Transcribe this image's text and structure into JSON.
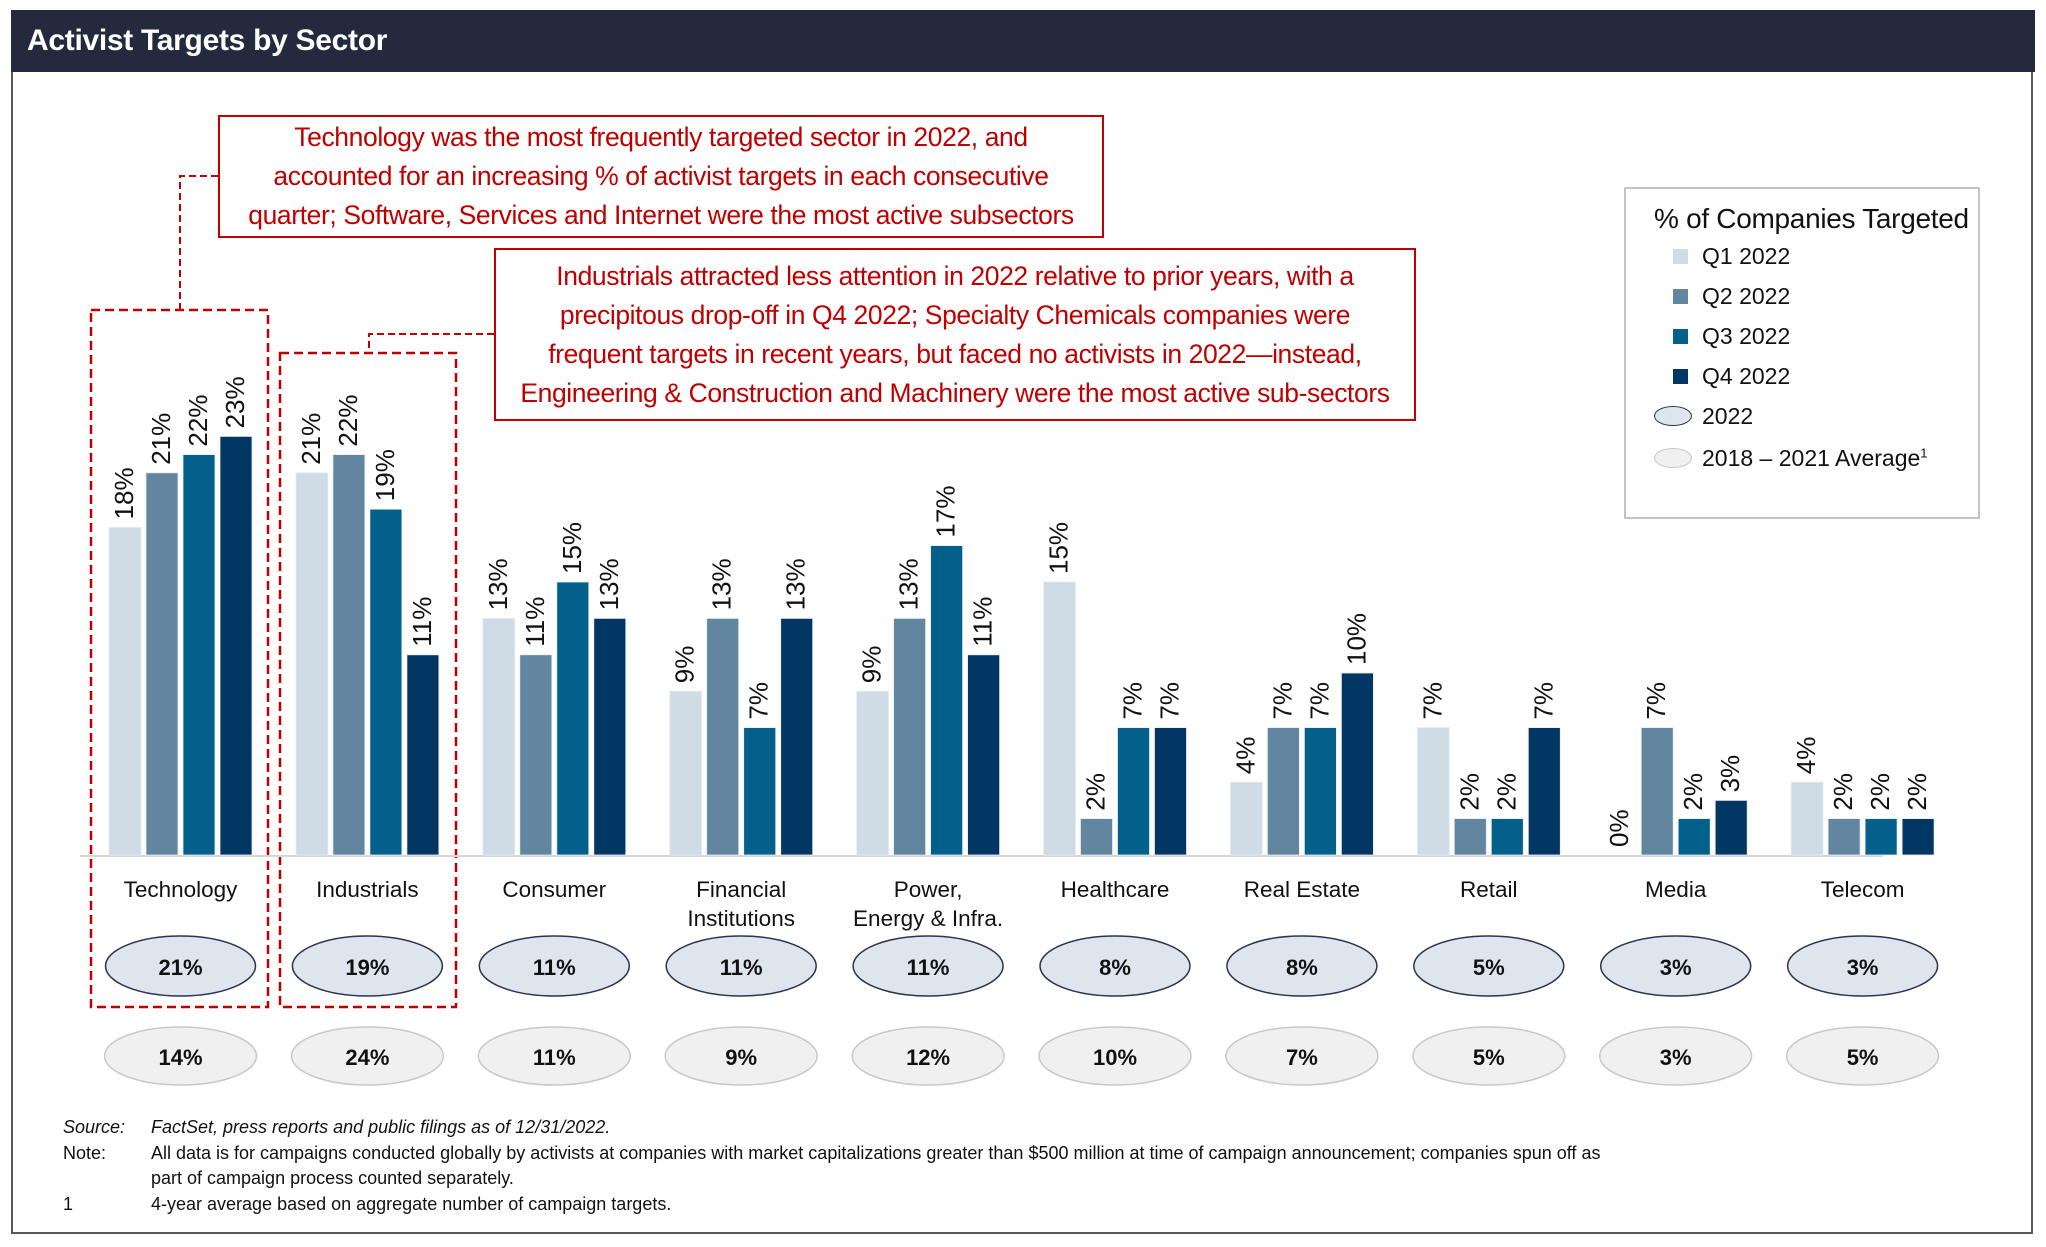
{
  "header": {
    "title": "Activist Targets by Sector"
  },
  "callouts": [
    {
      "id": "technology",
      "lines": [
        "Technology was the most frequently targeted sector in 2022, and",
        "accounted for an increasing % of activist targets in each consecutive",
        "quarter; Software, Services and Internet were the most active subsectors"
      ]
    },
    {
      "id": "industrials",
      "lines": [
        "Industrials attracted less attention in 2022 relative to prior years, with a",
        "precipitous drop-off in Q4 2022; Specialty Chemicals companies were",
        "frequent targets in recent years, but faced no activists in 2022—instead,",
        "Engineering & Construction and Machinery were the most active sub-sectors"
      ]
    }
  ],
  "legend": {
    "title": "% of Companies Targeted",
    "items": [
      {
        "label": "Q1 2022",
        "shape": "square",
        "color": "#cfdce6"
      },
      {
        "label": "Q2 2022",
        "shape": "square",
        "color": "#62869f"
      },
      {
        "label": "Q3 2022",
        "shape": "square",
        "color": "#03608b"
      },
      {
        "label": "Q4 2022",
        "shape": "square",
        "color": "#023764"
      },
      {
        "label": "2022",
        "shape": "ellipse",
        "color": "#dfe5ec",
        "border": "#2b3450"
      },
      {
        "label": "2018 – 2021 Average",
        "superscript": "1",
        "shape": "ellipse",
        "color": "#f0f0f0",
        "border": "#c8c8c8"
      }
    ]
  },
  "chart_data": {
    "type": "bar",
    "title": "Activist Targets by Sector",
    "ylabel": "% of Companies Targeted",
    "xlabel": "",
    "ylim": [
      0,
      25
    ],
    "grid": false,
    "legend_position": "right",
    "value_format": "percent",
    "categories": [
      "Technology",
      "Industrials",
      "Consumer",
      "Financial\nInstitutions",
      "Power,\nEnergy & Infra.",
      "Healthcare",
      "Real Estate",
      "Retail",
      "Media",
      "Telecom"
    ],
    "series": [
      {
        "name": "Q1 2022",
        "color": "#cfdce6",
        "values": [
          18,
          21,
          13,
          9,
          9,
          15,
          4,
          7,
          0,
          4
        ]
      },
      {
        "name": "Q2 2022",
        "color": "#62869f",
        "values": [
          21,
          22,
          11,
          13,
          13,
          2,
          7,
          2,
          7,
          2
        ]
      },
      {
        "name": "Q3 2022",
        "color": "#03608b",
        "values": [
          22,
          19,
          15,
          7,
          17,
          7,
          7,
          2,
          2,
          2
        ]
      },
      {
        "name": "Q4 2022",
        "color": "#023764",
        "values": [
          23,
          11,
          13,
          13,
          11,
          7,
          10,
          7,
          3,
          2
        ]
      }
    ],
    "summary_rows": [
      {
        "name": "2022",
        "values": [
          21,
          19,
          11,
          11,
          11,
          8,
          8,
          5,
          3,
          3
        ]
      },
      {
        "name": "2018 – 2021 Average",
        "values": [
          14,
          24,
          11,
          9,
          12,
          10,
          7,
          5,
          3,
          5
        ]
      }
    ],
    "highlighted_categories": [
      "Technology",
      "Industrials"
    ]
  },
  "footnotes": [
    {
      "key": "Source:",
      "text": "FactSet, press reports and public filings as of 12/31/2022.",
      "italic": true
    },
    {
      "key": "Note:",
      "text": "All data is for campaigns conducted globally by activists at companies with market capitalizations greater than $500 million at time of campaign announcement; companies spun off as",
      "italic": false
    },
    {
      "key": "",
      "text": "part of campaign process counted separately.",
      "italic": false
    },
    {
      "key": "1",
      "text": "4-year average based on aggregate number of campaign targets.",
      "italic": false
    }
  ]
}
